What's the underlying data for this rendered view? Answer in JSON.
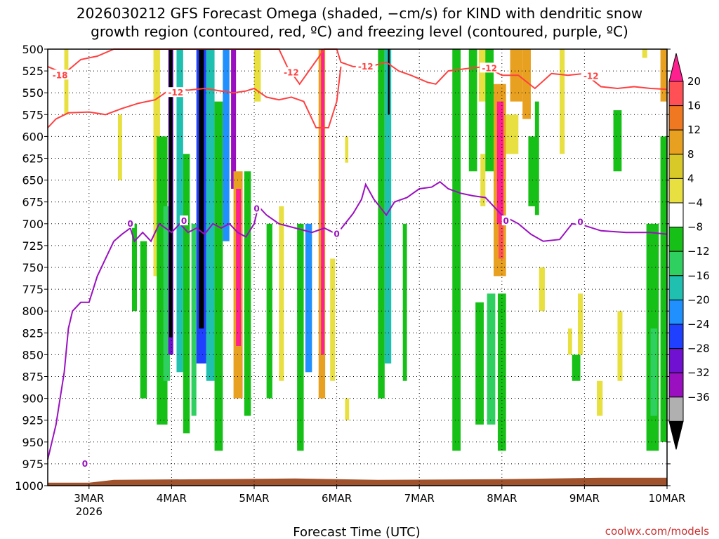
{
  "chart_data": {
    "type": "heatmap",
    "title_lines": [
      "2026030212 GFS Forecast Omega (shaded, −cm/s) for KIND with dendritic snow",
      "growth region (contoured, red, ºC) and freezing level (contoured, purple, ºC)"
    ],
    "xlabel": "Forecast Time (UTC)",
    "credit": "coolwx.com/models",
    "y_axis": {
      "label": "",
      "ticks": [
        500,
        525,
        550,
        575,
        600,
        625,
        650,
        675,
        700,
        725,
        750,
        775,
        800,
        825,
        850,
        875,
        900,
        925,
        950,
        975,
        1000
      ],
      "range": [
        500,
        1000
      ],
      "inverted": true
    },
    "x_axis": {
      "range_days": [
        2.5,
        10.0
      ],
      "ticks": [
        {
          "day": 3,
          "label": "3MAR",
          "sub": "2026"
        },
        {
          "day": 4,
          "label": "4MAR",
          "sub": ""
        },
        {
          "day": 5,
          "label": "5MAR",
          "sub": ""
        },
        {
          "day": 6,
          "label": "6MAR",
          "sub": ""
        },
        {
          "day": 7,
          "label": "7MAR",
          "sub": ""
        },
        {
          "day": 8,
          "label": "8MAR",
          "sub": ""
        },
        {
          "day": 9,
          "label": "9MAR",
          "sub": ""
        },
        {
          "day": 10,
          "label": "10MAR",
          "sub": ""
        }
      ]
    },
    "grid": "dotted",
    "colorbar": {
      "labels": [
        "20",
        "16",
        "12",
        "8",
        "4",
        "−4",
        "−8",
        "−12",
        "−16",
        "−20",
        "−24",
        "−28",
        "−32",
        "−36"
      ],
      "colors": [
        "#ff5055",
        "#f07820",
        "#e8a020",
        "#d8c828",
        "#e8e040",
        "#ffffff",
        "#16c016",
        "#30d060",
        "#20c0b0",
        "#2090ff",
        "#2040ff",
        "#7010d0",
        "#9a10c0",
        "#b0b0b0"
      ],
      "top_color": "#ff1f8f",
      "bottom_color": "#000000"
    },
    "omega_bands": [
      {
        "x0": 2.7,
        "x1": 2.75,
        "p0": 500,
        "p1": 575,
        "c": "#e8e040"
      },
      {
        "x0": 3.35,
        "x1": 3.4,
        "p0": 575,
        "p1": 650,
        "c": "#e8e040"
      },
      {
        "x0": 3.52,
        "x1": 3.58,
        "p0": 700,
        "p1": 800,
        "c": "#16c016"
      },
      {
        "x0": 3.62,
        "x1": 3.7,
        "p0": 720,
        "p1": 900,
        "c": "#16c016"
      },
      {
        "x0": 3.78,
        "x1": 3.86,
        "p0": 500,
        "p1": 760,
        "c": "#e8e040"
      },
      {
        "x0": 3.82,
        "x1": 3.95,
        "p0": 600,
        "p1": 930,
        "c": "#16c016"
      },
      {
        "x0": 3.9,
        "x1": 3.98,
        "p0": 680,
        "p1": 880,
        "c": "#30d060"
      },
      {
        "x0": 3.96,
        "x1": 4.02,
        "p0": 500,
        "p1": 850,
        "c": "#7010d0"
      },
      {
        "x0": 3.97,
        "x1": 4.01,
        "p0": 500,
        "p1": 830,
        "c": "#000000"
      },
      {
        "x0": 4.06,
        "x1": 4.14,
        "p0": 500,
        "p1": 870,
        "c": "#20c0b0"
      },
      {
        "x0": 4.14,
        "x1": 4.22,
        "p0": 620,
        "p1": 940,
        "c": "#16c016"
      },
      {
        "x0": 4.24,
        "x1": 4.3,
        "p0": 700,
        "p1": 920,
        "c": "#30d060"
      },
      {
        "x0": 4.3,
        "x1": 4.42,
        "p0": 500,
        "p1": 860,
        "c": "#2040ff"
      },
      {
        "x0": 4.33,
        "x1": 4.39,
        "p0": 500,
        "p1": 820,
        "c": "#000000"
      },
      {
        "x0": 4.42,
        "x1": 4.52,
        "p0": 500,
        "p1": 880,
        "c": "#20c0b0"
      },
      {
        "x0": 4.52,
        "x1": 4.62,
        "p0": 560,
        "p1": 960,
        "c": "#16c016"
      },
      {
        "x0": 4.62,
        "x1": 4.7,
        "p0": 500,
        "p1": 720,
        "c": "#2090ff"
      },
      {
        "x0": 4.72,
        "x1": 4.78,
        "p0": 500,
        "p1": 660,
        "c": "#9a10c0"
      },
      {
        "x0": 4.75,
        "x1": 4.86,
        "p0": 640,
        "p1": 900,
        "c": "#e8a020"
      },
      {
        "x0": 4.78,
        "x1": 4.84,
        "p0": 660,
        "p1": 840,
        "c": "#ff1f8f"
      },
      {
        "x0": 4.88,
        "x1": 4.96,
        "p0": 640,
        "p1": 920,
        "c": "#16c016"
      },
      {
        "x0": 5.0,
        "x1": 5.08,
        "p0": 500,
        "p1": 560,
        "c": "#e8e040"
      },
      {
        "x0": 5.15,
        "x1": 5.22,
        "p0": 700,
        "p1": 900,
        "c": "#16c016"
      },
      {
        "x0": 5.3,
        "x1": 5.36,
        "p0": 680,
        "p1": 880,
        "c": "#e8e040"
      },
      {
        "x0": 5.52,
        "x1": 5.6,
        "p0": 700,
        "p1": 960,
        "c": "#16c016"
      },
      {
        "x0": 5.62,
        "x1": 5.7,
        "p0": 700,
        "p1": 870,
        "c": "#2090ff"
      },
      {
        "x0": 5.78,
        "x1": 5.86,
        "p0": 500,
        "p1": 900,
        "c": "#e8a020"
      },
      {
        "x0": 5.81,
        "x1": 5.85,
        "p0": 500,
        "p1": 850,
        "c": "#ff1f8f"
      },
      {
        "x0": 5.92,
        "x1": 5.98,
        "p0": 740,
        "p1": 880,
        "c": "#e8e040"
      },
      {
        "x0": 6.1,
        "x1": 6.14,
        "p0": 600,
        "p1": 630,
        "c": "#e8e040"
      },
      {
        "x0": 6.1,
        "x1": 6.15,
        "p0": 900,
        "p1": 925,
        "c": "#e8e040"
      },
      {
        "x0": 6.5,
        "x1": 6.58,
        "p0": 500,
        "p1": 900,
        "c": "#16c016"
      },
      {
        "x0": 6.58,
        "x1": 6.66,
        "p0": 500,
        "p1": 860,
        "c": "#20c0b0"
      },
      {
        "x0": 6.62,
        "x1": 6.64,
        "p0": 500,
        "p1": 575,
        "c": "#000000"
      },
      {
        "x0": 6.8,
        "x1": 6.85,
        "p0": 700,
        "p1": 880,
        "c": "#16c016"
      },
      {
        "x0": 7.4,
        "x1": 7.5,
        "p0": 500,
        "p1": 960,
        "c": "#16c016"
      },
      {
        "x0": 7.6,
        "x1": 7.7,
        "p0": 500,
        "p1": 640,
        "c": "#16c016"
      },
      {
        "x0": 7.68,
        "x1": 7.78,
        "p0": 790,
        "p1": 930,
        "c": "#16c016"
      },
      {
        "x0": 7.72,
        "x1": 7.84,
        "p0": 500,
        "p1": 560,
        "c": "#e8e040"
      },
      {
        "x0": 7.74,
        "x1": 7.8,
        "p0": 620,
        "p1": 680,
        "c": "#e8e040"
      },
      {
        "x0": 7.8,
        "x1": 7.9,
        "p0": 500,
        "p1": 640,
        "c": "#16c016"
      },
      {
        "x0": 7.82,
        "x1": 7.92,
        "p0": 780,
        "p1": 930,
        "c": "#30d060"
      },
      {
        "x0": 7.9,
        "x1": 8.05,
        "p0": 540,
        "p1": 760,
        "c": "#e8a020"
      },
      {
        "x0": 7.94,
        "x1": 8.02,
        "p0": 560,
        "p1": 700,
        "c": "#ff1f8f"
      },
      {
        "x0": 7.96,
        "x1": 8.02,
        "p0": 700,
        "p1": 740,
        "c": "#ff5055"
      },
      {
        "x0": 7.95,
        "x1": 8.05,
        "p0": 780,
        "p1": 960,
        "c": "#16c016"
      },
      {
        "x0": 8.05,
        "x1": 8.2,
        "p0": 575,
        "p1": 620,
        "c": "#e8e040"
      },
      {
        "x0": 8.1,
        "x1": 8.25,
        "p0": 500,
        "p1": 560,
        "c": "#e8a020"
      },
      {
        "x0": 8.25,
        "x1": 8.35,
        "p0": 500,
        "p1": 580,
        "c": "#e8a020"
      },
      {
        "x0": 8.32,
        "x1": 8.42,
        "p0": 600,
        "p1": 680,
        "c": "#16c016"
      },
      {
        "x0": 8.4,
        "x1": 8.45,
        "p0": 560,
        "p1": 690,
        "c": "#16c016"
      },
      {
        "x0": 8.45,
        "x1": 8.52,
        "p0": 750,
        "p1": 800,
        "c": "#e8e040"
      },
      {
        "x0": 8.7,
        "x1": 8.76,
        "p0": 500,
        "p1": 620,
        "c": "#e8e040"
      },
      {
        "x0": 8.8,
        "x1": 8.85,
        "p0": 820,
        "p1": 850,
        "c": "#e8e040"
      },
      {
        "x0": 8.85,
        "x1": 8.95,
        "p0": 850,
        "p1": 880,
        "c": "#16c016"
      },
      {
        "x0": 8.92,
        "x1": 8.98,
        "p0": 780,
        "p1": 850,
        "c": "#e8e040"
      },
      {
        "x0": 9.15,
        "x1": 9.22,
        "p0": 880,
        "p1": 920,
        "c": "#e8e040"
      },
      {
        "x0": 9.35,
        "x1": 9.45,
        "p0": 570,
        "p1": 640,
        "c": "#16c016"
      },
      {
        "x0": 9.4,
        "x1": 9.46,
        "p0": 800,
        "p1": 880,
        "c": "#e8e040"
      },
      {
        "x0": 9.7,
        "x1": 9.76,
        "p0": 500,
        "p1": 510,
        "c": "#e8e040"
      },
      {
        "x0": 9.75,
        "x1": 9.9,
        "p0": 700,
        "p1": 960,
        "c": "#16c016"
      },
      {
        "x0": 9.8,
        "x1": 9.88,
        "p0": 820,
        "p1": 920,
        "c": "#30d060"
      },
      {
        "x0": 9.92,
        "x1": 10.0,
        "p0": 500,
        "p1": 560,
        "c": "#e8a020"
      },
      {
        "x0": 9.92,
        "x1": 10.0,
        "p0": 600,
        "p1": 950,
        "c": "#16c016"
      }
    ],
    "dgz_upper": {
      "name": "-12",
      "color": "#ff4040",
      "points": [
        [
          2.5,
          520
        ],
        [
          2.7,
          528
        ],
        [
          2.9,
          512
        ],
        [
          3.1,
          508
        ],
        [
          3.3,
          500
        ],
        [
          5.3,
          500
        ],
        [
          5.4,
          520
        ],
        [
          5.55,
          540
        ],
        [
          5.7,
          520
        ],
        [
          5.85,
          500
        ],
        [
          6.0,
          500
        ],
        [
          6.05,
          515
        ],
        [
          6.2,
          520
        ],
        [
          6.4,
          520
        ],
        [
          6.6,
          515
        ],
        [
          6.75,
          525
        ],
        [
          6.9,
          530
        ],
        [
          7.1,
          538
        ],
        [
          7.2,
          540
        ],
        [
          7.35,
          525
        ],
        [
          7.6,
          522
        ],
        [
          7.8,
          520
        ],
        [
          8.0,
          530
        ],
        [
          8.2,
          530
        ],
        [
          8.4,
          545
        ],
        [
          8.6,
          528
        ],
        [
          8.8,
          530
        ],
        [
          9.0,
          528
        ],
        [
          9.2,
          543
        ],
        [
          9.4,
          545
        ],
        [
          9.6,
          543
        ],
        [
          9.8,
          545
        ],
        [
          10.0,
          546
        ]
      ]
    },
    "dgz_lower": {
      "name": "-12",
      "color": "#ff4040",
      "points": [
        [
          2.5,
          590
        ],
        [
          2.6,
          580
        ],
        [
          2.75,
          573
        ],
        [
          3.0,
          572
        ],
        [
          3.2,
          575
        ],
        [
          3.4,
          568
        ],
        [
          3.6,
          562
        ],
        [
          3.8,
          558
        ],
        [
          4.0,
          545
        ],
        [
          4.2,
          547
        ],
        [
          4.4,
          545
        ],
        [
          4.6,
          548
        ],
        [
          4.75,
          550
        ],
        [
          4.9,
          548
        ],
        [
          5.0,
          545
        ],
        [
          5.15,
          555
        ],
        [
          5.3,
          558
        ],
        [
          5.45,
          555
        ],
        [
          5.6,
          560
        ],
        [
          5.75,
          590
        ],
        [
          5.9,
          590
        ],
        [
          6.0,
          560
        ],
        [
          6.05,
          520
        ]
      ]
    },
    "freezing_level": {
      "name": "0",
      "color": "#9a10c0",
      "points": [
        [
          2.5,
          970
        ],
        [
          2.55,
          950
        ],
        [
          2.6,
          930
        ],
        [
          2.65,
          900
        ],
        [
          2.7,
          870
        ],
        [
          2.75,
          820
        ],
        [
          2.8,
          800
        ],
        [
          2.9,
          790
        ],
        [
          3.0,
          790
        ],
        [
          3.1,
          760
        ],
        [
          3.2,
          740
        ],
        [
          3.3,
          720
        ],
        [
          3.4,
          712
        ],
        [
          3.5,
          705
        ],
        [
          3.55,
          720
        ],
        [
          3.65,
          710
        ],
        [
          3.75,
          720
        ],
        [
          3.85,
          700
        ],
        [
          4.0,
          710
        ],
        [
          4.1,
          700
        ],
        [
          4.2,
          710
        ],
        [
          4.3,
          705
        ],
        [
          4.4,
          712
        ],
        [
          4.5,
          700
        ],
        [
          4.6,
          705
        ],
        [
          4.7,
          700
        ],
        [
          4.8,
          710
        ],
        [
          4.9,
          715
        ],
        [
          5.0,
          700
        ],
        [
          5.05,
          680
        ],
        [
          5.15,
          690
        ],
        [
          5.3,
          700
        ],
        [
          5.5,
          705
        ],
        [
          5.7,
          710
        ],
        [
          5.85,
          705
        ],
        [
          6.0,
          712
        ],
        [
          6.1,
          700
        ],
        [
          6.2,
          688
        ],
        [
          6.3,
          672
        ],
        [
          6.35,
          655
        ],
        [
          6.45,
          672
        ],
        [
          6.6,
          690
        ],
        [
          6.7,
          675
        ],
        [
          6.85,
          670
        ],
        [
          7.0,
          660
        ],
        [
          7.15,
          658
        ],
        [
          7.25,
          652
        ],
        [
          7.35,
          660
        ],
        [
          7.5,
          665
        ],
        [
          7.65,
          668
        ],
        [
          7.8,
          670
        ],
        [
          7.9,
          680
        ],
        [
          8.0,
          690
        ],
        [
          8.1,
          695
        ],
        [
          8.2,
          700
        ],
        [
          8.35,
          712
        ],
        [
          8.5,
          720
        ],
        [
          8.7,
          718
        ],
        [
          8.85,
          700
        ],
        [
          9.0,
          702
        ],
        [
          9.2,
          708
        ],
        [
          9.5,
          710
        ],
        [
          9.8,
          710
        ],
        [
          10.0,
          712
        ]
      ]
    },
    "surface": {
      "color": "#a0522d",
      "pressure": 995
    }
  }
}
